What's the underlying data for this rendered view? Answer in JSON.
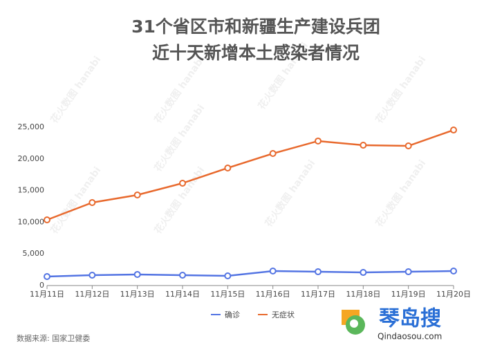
{
  "chart_data": {
    "type": "line",
    "title": "31个省区市和新疆生产建设兵团",
    "subtitle": "近十天新增本土感染者情况",
    "categories": [
      "11月11日",
      "11月12日",
      "11月13日",
      "11月14日",
      "11月15日",
      "11月16日",
      "11月17日",
      "11月18日",
      "11月19日",
      "11月20日"
    ],
    "series": [
      {
        "name": "确诊",
        "color": "#5374e3",
        "values": [
          1420,
          1640,
          1750,
          1640,
          1530,
          2290,
          2180,
          2070,
          2180,
          2290
        ]
      },
      {
        "name": "无症状",
        "color": "#e8692d",
        "values": [
          10370,
          13100,
          14300,
          16160,
          18560,
          20850,
          22820,
          22160,
          22050,
          24560
        ]
      }
    ],
    "ylim": [
      0,
      25000
    ],
    "yticks": [
      0,
      {
        "value": 5000,
        "label": "5,000"
      },
      {
        "value": 10000,
        "label": "10,000"
      },
      {
        "value": 15000,
        "label": "15,000"
      },
      {
        "value": 20000,
        "label": "20,000"
      },
      {
        "value": 25000,
        "label": "25,000"
      }
    ],
    "grid": false,
    "legend": "bottom",
    "source": "数据来源: 国家卫健委",
    "watermark": "花火数图 hanabi",
    "logo": {
      "name": "琴岛搜",
      "url": "Qindaosou.com"
    }
  }
}
